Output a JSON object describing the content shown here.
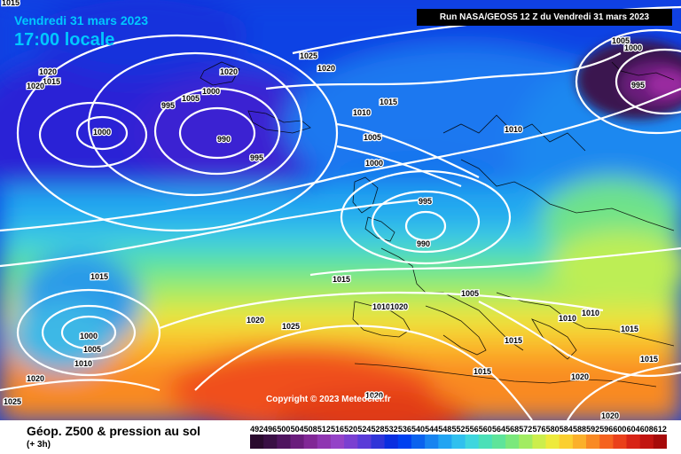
{
  "header": {
    "date": "Vendredi 31 mars 2023",
    "time": "17:00 locale",
    "run_info": "Run NASA/GEOS5 12 Z du Vendredi 31 mars 2023"
  },
  "footer": {
    "title": "Géop. Z500 & pression au sol",
    "subtitle": "(+ 3h)",
    "copyright": "Copyright © 2023 Meteociel.fr"
  },
  "legend": {
    "values": [
      "492",
      "496",
      "500",
      "504",
      "508",
      "512",
      "516",
      "520",
      "524",
      "528",
      "532",
      "536",
      "540",
      "544",
      "548",
      "552",
      "556",
      "560",
      "564",
      "568",
      "572",
      "576",
      "580",
      "584",
      "588",
      "592",
      "596",
      "600",
      "604",
      "608",
      "612"
    ],
    "colors": [
      "#2a0a2e",
      "#3a0f45",
      "#4f145f",
      "#6a1c7c",
      "#812796",
      "#8f35b1",
      "#9442c7",
      "#7a3fd1",
      "#5a3bd8",
      "#3034d8",
      "#0a2ee0",
      "#0040f0",
      "#0a62ee",
      "#1884f0",
      "#22a4f2",
      "#30c0ee",
      "#3fd6de",
      "#4be0b8",
      "#5ee49a",
      "#7be87c",
      "#a2ec62",
      "#ccee4c",
      "#eeea3c",
      "#fbcf30",
      "#fbb02a",
      "#f98a24",
      "#f5621e",
      "#ea401a",
      "#d82416",
      "#c21410",
      "#a60a0a"
    ]
  },
  "map": {
    "isobar_labels": [
      "1015",
      "1020",
      "1015",
      "1020",
      "1020",
      "1000",
      "1005",
      "995",
      "1000",
      "990",
      "995",
      "1025",
      "1020",
      "1015",
      "1010",
      "1005",
      "1000",
      "1010",
      "1005",
      "1000",
      "995",
      "995",
      "990",
      "1015",
      "1005",
      "1010",
      "1020",
      "1020",
      "1025",
      "1000",
      "1005",
      "1010",
      "1015",
      "1015",
      "1015",
      "1020",
      "1020",
      "1025",
      "1010",
      "1010",
      "1015",
      "1015",
      "1020",
      "1020"
    ]
  }
}
